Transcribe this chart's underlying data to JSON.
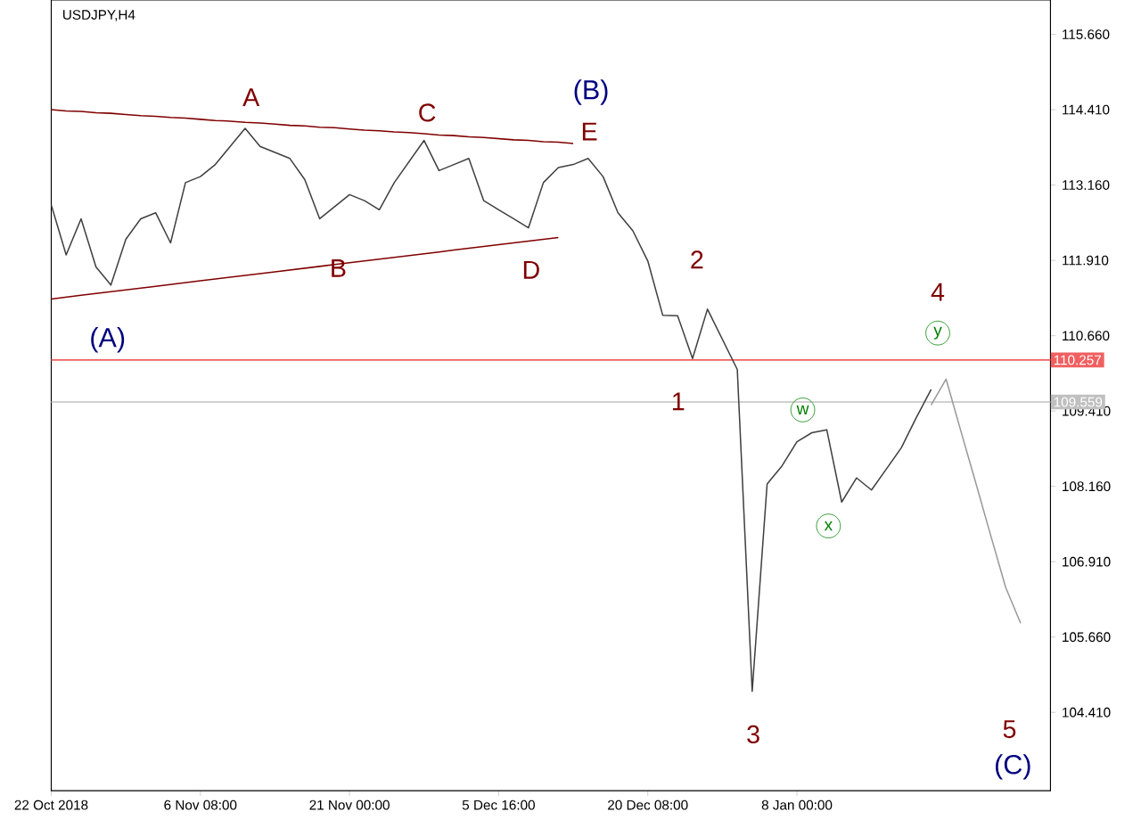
{
  "chart_data": {
    "type": "line",
    "title": "USDJPY,H4",
    "categories": [
      "22 Oct 2018",
      null,
      null,
      null,
      null,
      null,
      null,
      null,
      null,
      null,
      "6 Nov 08:00",
      null,
      null,
      null,
      null,
      null,
      null,
      null,
      null,
      null,
      "21 Nov 00:00",
      null,
      null,
      null,
      null,
      null,
      null,
      null,
      null,
      null,
      "5 Dec 16:00",
      null,
      null,
      null,
      null,
      null,
      null,
      null,
      null,
      null,
      "20 Dec 08:00",
      null,
      null,
      null,
      null,
      null,
      null,
      null,
      null,
      null,
      "8 Jan 00:00",
      null,
      null,
      null,
      null,
      null,
      null,
      null,
      null,
      null,
      null,
      null,
      null,
      null,
      null,
      null,
      null,
      null
    ],
    "ylim": [
      103.11,
      116.23
    ],
    "yticks": [
      {
        "value": 104.41,
        "label": "104.410"
      },
      {
        "value": 105.66,
        "label": "105.660"
      },
      {
        "value": 106.91,
        "label": "106.910"
      },
      {
        "value": 108.16,
        "label": "108.160"
      },
      {
        "value": 109.41,
        "label": "109.410"
      },
      {
        "value": 110.66,
        "label": "110.660"
      },
      {
        "value": 111.91,
        "label": "111.910"
      },
      {
        "value": 113.16,
        "label": "113.160"
      },
      {
        "value": 114.41,
        "label": "114.410"
      },
      {
        "value": 115.66,
        "label": "115.660"
      }
    ],
    "series": [
      {
        "color": "#404040",
        "values": [
          112.83,
          112.0,
          112.6,
          111.8,
          111.5,
          112.26,
          112.6,
          112.7,
          112.2,
          113.2,
          113.3,
          113.5,
          113.8,
          114.1,
          113.8,
          113.7,
          113.6,
          113.25,
          112.6,
          112.8,
          113.0,
          112.9,
          112.75,
          113.2,
          113.55,
          113.9,
          113.4,
          113.5,
          113.6,
          112.9,
          112.75,
          112.6,
          112.45,
          113.2,
          113.45,
          113.5,
          113.6,
          113.3,
          112.7,
          112.4,
          111.9,
          111.0,
          110.99,
          110.28,
          111.1,
          110.6,
          110.1,
          104.76,
          108.2,
          108.5,
          108.9,
          109.05,
          109.1,
          107.9,
          108.3,
          108.1,
          108.45,
          108.8,
          109.3,
          109.77,
          null,
          null,
          null,
          null,
          null,
          null,
          null,
          null
        ]
      },
      {
        "color": "#800000",
        "values": [
          114.41,
          114.39,
          114.38,
          114.36,
          114.35,
          114.33,
          114.31,
          114.3,
          114.28,
          114.27,
          114.25,
          114.23,
          114.22,
          114.2,
          114.19,
          114.17,
          114.15,
          114.14,
          114.12,
          114.11,
          114.09,
          114.07,
          114.06,
          114.04,
          114.03,
          114.01,
          113.99,
          113.98,
          113.96,
          113.95,
          113.93,
          113.91,
          113.9,
          113.88,
          113.87,
          113.85,
          null,
          null,
          null,
          null,
          null,
          null,
          null,
          null,
          null,
          null,
          null,
          null,
          null,
          null,
          null,
          null,
          null,
          null,
          null,
          null,
          null,
          null,
          null,
          null,
          null,
          null,
          null,
          null,
          null,
          null,
          null,
          null
        ]
      },
      {
        "color": "#800000",
        "values": [
          111.27,
          111.3,
          111.33,
          111.36,
          111.39,
          111.42,
          111.45,
          111.48,
          111.51,
          111.54,
          111.57,
          111.6,
          111.63,
          111.66,
          111.69,
          111.72,
          111.75,
          111.78,
          111.81,
          111.84,
          111.87,
          111.9,
          111.93,
          111.96,
          111.99,
          112.02,
          112.05,
          112.08,
          112.11,
          112.14,
          112.17,
          112.2,
          112.23,
          112.26,
          112.29,
          null,
          null,
          null,
          null,
          null,
          null,
          null,
          null,
          null,
          null,
          null,
          null,
          null,
          null,
          null,
          null,
          null,
          null,
          null,
          null,
          null,
          null,
          null,
          null,
          null,
          null,
          null,
          null,
          null,
          null,
          null,
          null,
          null
        ]
      },
      {
        "color": "#999999",
        "values": [
          null,
          null,
          null,
          null,
          null,
          null,
          null,
          null,
          null,
          null,
          null,
          null,
          null,
          null,
          null,
          null,
          null,
          null,
          null,
          null,
          null,
          null,
          null,
          null,
          null,
          null,
          null,
          null,
          null,
          null,
          null,
          null,
          null,
          null,
          null,
          null,
          null,
          null,
          null,
          null,
          null,
          null,
          null,
          null,
          null,
          null,
          null,
          null,
          null,
          null,
          null,
          null,
          null,
          null,
          null,
          null,
          null,
          null,
          null,
          109.51,
          109.94,
          109.07,
          108.21,
          107.34,
          106.48,
          105.89,
          null,
          null
        ]
      }
    ],
    "ref_lines": [
      {
        "axis": "y",
        "value": 110.257,
        "label": "110.257",
        "color": "#f06060"
      },
      {
        "axis": "y",
        "value": 109.559,
        "label": "109.559",
        "color": "#c0c0c0"
      }
    ],
    "annotations": [
      "A",
      "C",
      "E",
      "B",
      "D",
      "(A)",
      "(B)",
      "(C)",
      "1",
      "2",
      "3",
      "4",
      "5",
      "w",
      "x",
      "y"
    ]
  }
}
